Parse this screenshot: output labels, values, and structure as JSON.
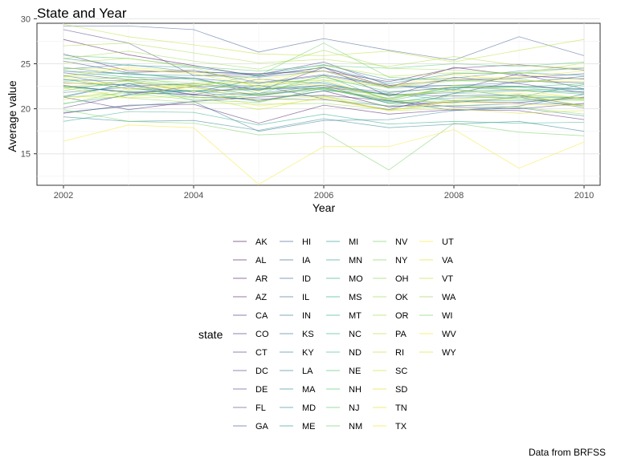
{
  "chart_data": {
    "type": "line",
    "title": "State and Year",
    "xlabel": "Year",
    "ylabel": "Average value",
    "caption": "Data from BRFSS",
    "legend_title": "state",
    "legend_position": "bottom",
    "grid": true,
    "xlim": [
      1999.0,
      2010.5
    ],
    "ylim": [
      11.5,
      29.5
    ],
    "x_ticks": [
      2002,
      2004,
      2006,
      2008,
      2010
    ],
    "y_ticks": [
      15,
      20,
      25,
      30
    ],
    "x": [
      2002,
      2003,
      2004,
      2005,
      2006,
      2007,
      2008,
      2009,
      2010
    ],
    "series": [
      {
        "name": "AK",
        "color": "#440154",
        "values": [
          27.7,
          26.0,
          24.8,
          23.6,
          24.6,
          22.4,
          24.6,
          23.7,
          23.3
        ]
      },
      {
        "name": "AL",
        "color": "#450a5c",
        "values": [
          22.6,
          21.8,
          21.6,
          20.9,
          22.0,
          20.2,
          20.8,
          20.7,
          21.3
        ]
      },
      {
        "name": "AR",
        "color": "#471465",
        "values": [
          19.5,
          20.4,
          20.5,
          18.4,
          20.4,
          19.4,
          19.9,
          19.8,
          18.8
        ]
      },
      {
        "name": "AZ",
        "color": "#481c6e",
        "values": [
          26.1,
          24.2,
          24.1,
          23.9,
          24.2,
          23.0,
          24.5,
          24.9,
          24.3
        ]
      },
      {
        "name": "CA",
        "color": "#482475",
        "values": [
          21.3,
          19.9,
          20.8,
          21.3,
          21.5,
          20.9,
          20.2,
          20.0,
          20.6
        ]
      },
      {
        "name": "CO",
        "color": "#472c7a",
        "values": [
          20.1,
          21.6,
          22.5,
          21.5,
          22.4,
          21.6,
          21.4,
          21.5,
          20.3
        ]
      },
      {
        "name": "CT",
        "color": "#46337f",
        "values": [
          24.0,
          23.2,
          23.4,
          22.0,
          24.6,
          21.4,
          23.5,
          22.8,
          21.8
        ]
      },
      {
        "name": "DC",
        "color": "#443a83",
        "values": [
          28.8,
          27.3,
          23.7,
          23.8,
          25.2,
          22.6,
          22.1,
          23.9,
          22.2
        ]
      },
      {
        "name": "DE",
        "color": "#424186",
        "values": [
          22.9,
          22.6,
          21.6,
          22.6,
          21.1,
          19.9,
          21.7,
          23.1,
          22.9
        ]
      },
      {
        "name": "FL",
        "color": "#3f4788",
        "values": [
          25.3,
          24.0,
          24.3,
          22.9,
          23.8,
          22.6,
          23.2,
          23.4,
          23.9
        ]
      },
      {
        "name": "GA",
        "color": "#3c4f8a",
        "values": [
          23.7,
          22.5,
          22.8,
          22.2,
          22.6,
          21.8,
          22.4,
          22.5,
          22.2
        ]
      },
      {
        "name": "HI",
        "color": "#39558c",
        "values": [
          29.2,
          29.2,
          28.8,
          26.3,
          27.8,
          26.5,
          25.4,
          28.0,
          25.9
        ]
      },
      {
        "name": "IA",
        "color": "#365c8d",
        "values": [
          21.3,
          22.8,
          21.5,
          21.7,
          22.6,
          20.6,
          20.7,
          21.3,
          20.1
        ]
      },
      {
        "name": "ID",
        "color": "#33628d",
        "values": [
          22.5,
          21.9,
          22.0,
          22.2,
          22.3,
          20.9,
          19.8,
          20.3,
          21.6
        ]
      },
      {
        "name": "IL",
        "color": "#31688e",
        "values": [
          24.2,
          23.9,
          23.4,
          22.8,
          23.7,
          22.5,
          22.6,
          22.9,
          23.6
        ]
      },
      {
        "name": "IN",
        "color": "#2e6f8e",
        "values": [
          21.8,
          22.4,
          21.3,
          21.1,
          21.0,
          20.3,
          20.3,
          20.6,
          20.5
        ]
      },
      {
        "name": "KS",
        "color": "#2c738e",
        "values": [
          23.2,
          23.1,
          21.8,
          23.3,
          22.8,
          21.5,
          21.8,
          22.0,
          21.9
        ]
      },
      {
        "name": "KY",
        "color": "#29798e",
        "values": [
          19.6,
          20.3,
          20.8,
          17.5,
          18.7,
          18.8,
          19.8,
          20.1,
          19.2
        ]
      },
      {
        "name": "LA",
        "color": "#277f8e",
        "values": [
          19.1,
          18.6,
          18.7,
          17.6,
          18.9,
          17.9,
          18.3,
          18.6,
          17.5
        ]
      },
      {
        "name": "MA",
        "color": "#25848e",
        "values": [
          24.4,
          24.9,
          24.1,
          23.8,
          24.9,
          23.2,
          23.4,
          24.2,
          24.5
        ]
      },
      {
        "name": "MD",
        "color": "#23898e",
        "values": [
          24.6,
          23.8,
          23.7,
          23.5,
          24.2,
          22.3,
          22.6,
          22.5,
          22.1
        ]
      },
      {
        "name": "ME",
        "color": "#218f8d",
        "values": [
          25.6,
          24.8,
          24.6,
          23.7,
          24.6,
          22.8,
          23.9,
          24.0,
          23.7
        ]
      },
      {
        "name": "MI",
        "color": "#1f958b",
        "values": [
          23.3,
          22.2,
          22.0,
          21.5,
          22.2,
          20.8,
          21.2,
          21.3,
          21.2
        ]
      },
      {
        "name": "MN",
        "color": "#1f9a8a",
        "values": [
          21.4,
          22.8,
          22.6,
          22.1,
          23.0,
          21.1,
          22.4,
          22.1,
          22.2
        ]
      },
      {
        "name": "MO",
        "color": "#20a386",
        "values": [
          22.5,
          21.8,
          22.0,
          20.8,
          22.0,
          21.7,
          20.9,
          20.9,
          21.1
        ]
      },
      {
        "name": "MS",
        "color": "#22a884",
        "values": [
          18.6,
          19.7,
          19.6,
          18.2,
          19.4,
          18.3,
          18.6,
          18.4,
          18.5
        ]
      },
      {
        "name": "MT",
        "color": "#29af7f",
        "values": [
          24.2,
          23.5,
          23.4,
          21.7,
          23.7,
          20.9,
          22.2,
          21.3,
          22.7
        ]
      },
      {
        "name": "NC",
        "color": "#2fb47c",
        "values": [
          20.6,
          21.5,
          22.0,
          22.1,
          22.6,
          21.5,
          22.0,
          22.1,
          21.6
        ]
      },
      {
        "name": "ND",
        "color": "#37b878",
        "values": [
          22.3,
          22.8,
          20.9,
          21.6,
          22.4,
          20.6,
          21.7,
          21.5,
          21.2
        ]
      },
      {
        "name": "NE",
        "color": "#42be71",
        "values": [
          23.7,
          24.0,
          23.2,
          22.3,
          23.5,
          21.9,
          22.3,
          22.4,
          22.8
        ]
      },
      {
        "name": "NH",
        "color": "#4ac16d",
        "values": [
          25.9,
          25.6,
          24.7,
          24.2,
          24.8,
          24.5,
          25.0,
          24.7,
          25.2
        ]
      },
      {
        "name": "NJ",
        "color": "#54c568",
        "values": [
          22.0,
          23.2,
          22.5,
          22.6,
          22.1,
          21.2,
          22.4,
          22.4,
          21.7
        ]
      },
      {
        "name": "NM",
        "color": "#60ca60",
        "values": [
          23.0,
          23.6,
          22.5,
          23.7,
          27.3,
          23.5,
          23.1,
          23.3,
          22.5
        ]
      },
      {
        "name": "NV",
        "color": "#6ccd5a",
        "values": [
          19.9,
          18.6,
          18.4,
          17.1,
          17.4,
          13.2,
          18.4,
          17.4,
          17.0
        ]
      },
      {
        "name": "NY",
        "color": "#7ad151",
        "values": [
          20.5,
          22.0,
          21.2,
          21.5,
          21.4,
          20.3,
          21.5,
          21.1,
          20.9
        ]
      },
      {
        "name": "OH",
        "color": "#86d549",
        "values": [
          22.6,
          21.2,
          20.7,
          20.5,
          20.6,
          19.9,
          20.4,
          20.2,
          19.4
        ]
      },
      {
        "name": "OK",
        "color": "#95d840",
        "values": [
          25.6,
          26.4,
          25.3,
          24.4,
          26.5,
          24.5,
          24.3,
          23.9,
          24.6
        ]
      },
      {
        "name": "OR",
        "color": "#a2da37",
        "values": [
          27.0,
          27.3,
          26.2,
          25.1,
          25.5,
          24.7,
          25.8,
          24.8,
          24.5
        ]
      },
      {
        "name": "PA",
        "color": "#b0dd2f",
        "values": [
          25.1,
          25.6,
          24.6,
          22.4,
          24.8,
          23.6,
          24.0,
          23.9,
          25.1
        ]
      },
      {
        "name": "RI",
        "color": "#bddf26",
        "values": [
          22.4,
          23.1,
          22.3,
          21.6,
          22.3,
          21.0,
          20.6,
          21.3,
          21.0
        ]
      },
      {
        "name": "SC",
        "color": "#cae11f",
        "values": [
          21.4,
          21.2,
          21.4,
          19.9,
          21.3,
          19.8,
          20.0,
          19.5,
          19.8
        ]
      },
      {
        "name": "SD",
        "color": "#d8e219",
        "values": [
          22.3,
          21.2,
          22.8,
          22.0,
          23.2,
          21.0,
          22.6,
          22.1,
          21.1
        ]
      },
      {
        "name": "TN",
        "color": "#e5e419",
        "values": [
          23.5,
          22.2,
          22.7,
          23.0,
          22.6,
          21.4,
          22.0,
          21.7,
          21.2
        ]
      },
      {
        "name": "TX",
        "color": "#f1e51d",
        "values": [
          23.6,
          24.6,
          24.1,
          23.2,
          24.2,
          22.5,
          23.8,
          23.1,
          23.0
        ]
      },
      {
        "name": "UT",
        "color": "#fde725",
        "values": [
          22.8,
          23.0,
          22.0,
          20.3,
          21.1,
          19.8,
          20.8,
          20.5,
          20.3
        ]
      },
      {
        "name": "VA",
        "color": "#dde318",
        "values": [
          24.5,
          24.4,
          23.9,
          22.5,
          23.5,
          22.4,
          23.4,
          23.5,
          24.2
        ]
      },
      {
        "name": "VT",
        "color": "#bade28",
        "values": [
          29.4,
          28.0,
          27.1,
          26.1,
          25.9,
          26.4,
          25.2,
          26.5,
          27.7
        ]
      },
      {
        "name": "WA",
        "color": "#93d741",
        "values": [
          23.6,
          23.3,
          22.9,
          22.9,
          23.2,
          22.4,
          23.1,
          23.0,
          23.4
        ]
      },
      {
        "name": "WI",
        "color": "#6ece58",
        "values": [
          21.3,
          21.7,
          21.0,
          20.7,
          22.3,
          20.7,
          20.9,
          21.1,
          20.3
        ]
      },
      {
        "name": "WV",
        "color": "#f8e621",
        "values": [
          16.4,
          18.2,
          17.9,
          11.6,
          15.8,
          15.8,
          17.7,
          13.4,
          16.3
        ]
      },
      {
        "name": "WY",
        "color": "#d2e21b",
        "values": [
          21.0,
          22.2,
          22.4,
          20.9,
          21.4,
          19.8,
          21.0,
          21.6,
          20.3
        ]
      }
    ]
  }
}
